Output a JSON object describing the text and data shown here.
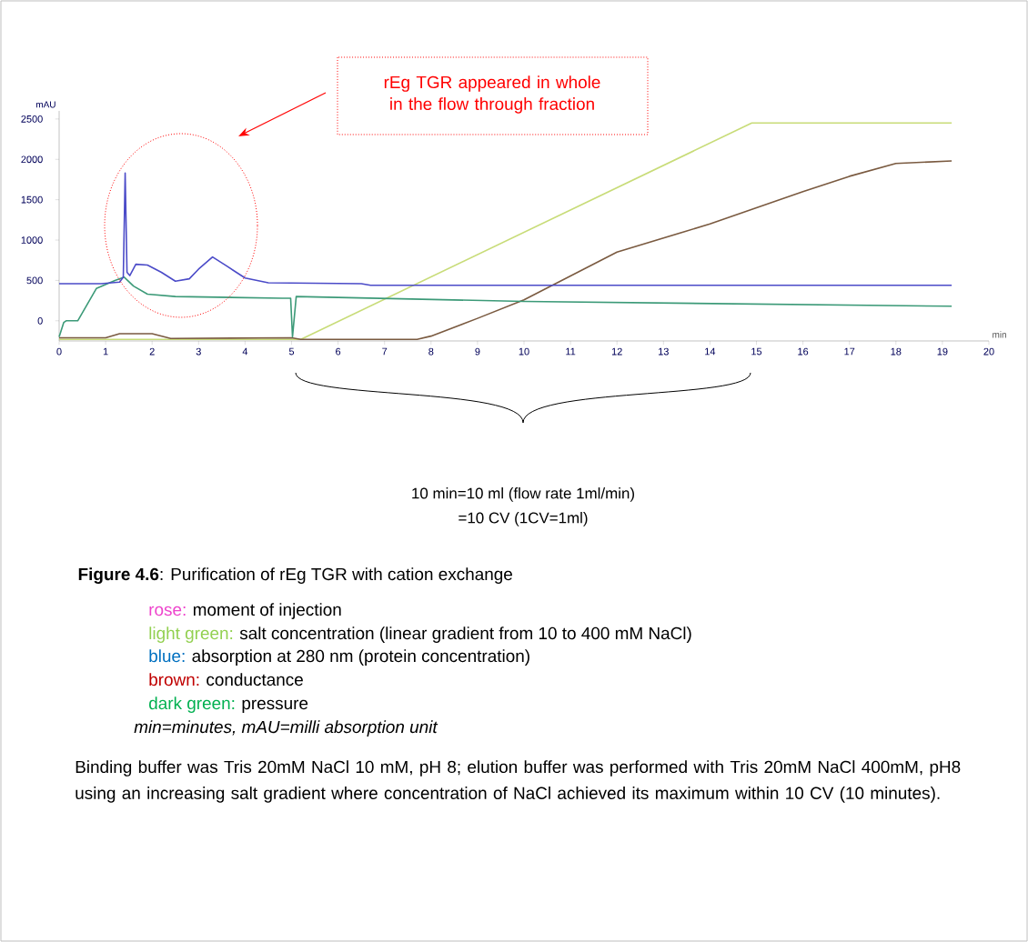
{
  "chart_data": {
    "type": "line",
    "title": "**Figure 4.6**: Purification of rEg TGR with cation exchange",
    "xlabel": "min",
    "ylabel": "mAU",
    "xlim": [
      0,
      20
    ],
    "xticks": [
      0,
      1,
      2,
      3,
      4,
      5,
      6,
      7,
      8,
      9,
      10,
      11,
      12,
      13,
      14,
      15,
      16,
      17,
      18,
      19,
      20
    ],
    "ylim": [
      -250,
      2600
    ],
    "yticks": [
      0,
      500,
      1000,
      1500,
      2000,
      2500
    ],
    "grid": false,
    "marker": "none",
    "line_style": "solid",
    "series": [
      {
        "color": "#c8dc78",
        "x": [
          0,
          5.2,
          14.9,
          19.2
        ],
        "values": [
          -230,
          -230,
          2450,
          2450
        ]
      },
      {
        "color": "#7a5a40",
        "x": [
          0,
          1.0,
          1.3,
          2.0,
          2.4,
          5.0,
          5.2,
          7.7,
          8.0,
          9.0,
          10.0,
          12.0,
          14.0,
          16.0,
          17.0,
          18.0,
          19.2
        ],
        "values": [
          -210,
          -210,
          -160,
          -160,
          -220,
          -210,
          -230,
          -230,
          -190,
          30,
          260,
          850,
          1200,
          1600,
          1790,
          1950,
          1980
        ]
      },
      {
        "color": "#3c9a78",
        "x": [
          0,
          0.1,
          0.15,
          0.4,
          0.8,
          1.2,
          1.4,
          1.6,
          1.9,
          2.5,
          4.8,
          4.98,
          5.02,
          5.1,
          10,
          19.2
        ],
        "values": [
          -200,
          -20,
          0,
          0,
          400,
          500,
          540,
          430,
          330,
          300,
          280,
          280,
          -200,
          300,
          240,
          180
        ]
      },
      {
        "color": "#4b4bc8",
        "x": [
          0,
          0.9,
          1.3,
          1.38,
          1.42,
          1.46,
          1.52,
          1.65,
          1.9,
          2.2,
          2.5,
          2.8,
          3.0,
          3.3,
          3.6,
          4.0,
          4.5,
          6.5,
          6.7,
          19.2
        ],
        "values": [
          460,
          460,
          480,
          540,
          1830,
          600,
          560,
          700,
          690,
          600,
          490,
          520,
          640,
          790,
          680,
          530,
          470,
          460,
          440,
          440
        ]
      }
    ],
    "annotations": [
      "rEg TGR appeared in whole in the flow through fraction",
      "10 min=10 ml (flow rate 1ml/min)",
      "=10 CV (1CV=1ml)",
      "rose:",
      "moment of injection",
      "light green:",
      "salt concentration (linear gradient from 10 to 400 mM NaCl)",
      "blue:",
      "absorption at 280 nm (protein concentration)",
      "brown:",
      "conductance",
      "dark green:",
      "pressure",
      "min=minutes, mAU=milli absorption unit",
      "Binding buffer was Tris 20mM NaCl 10 mM, pH 8; elution buffer was performed with Tris 20mM NaCl 400mM, pH8 using an increasing salt gradient where concentration of NaCl achieved its maximum within 10 CV (10 minutes)."
    ]
  }
}
